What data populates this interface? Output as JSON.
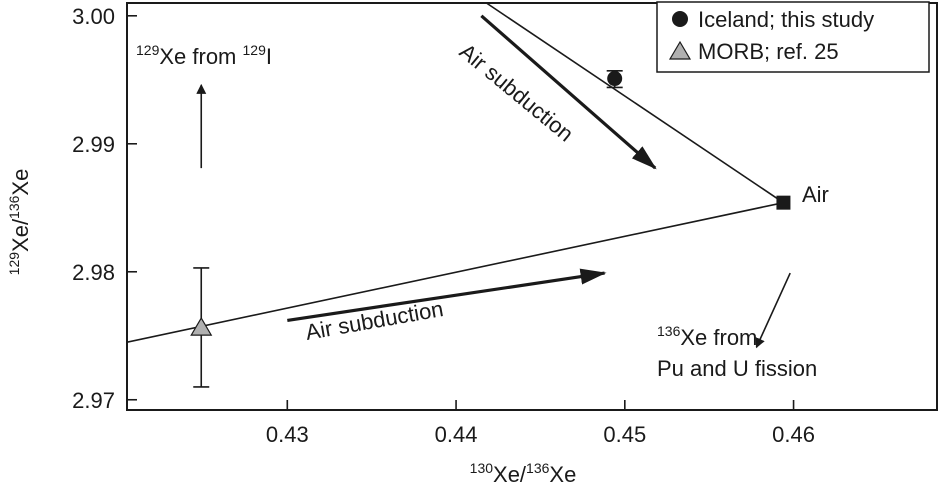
{
  "chart_data": {
    "type": "scatter",
    "xlim": [
      0.4205,
      0.4685
    ],
    "ylim": [
      2.9692,
      3.001
    ],
    "x_ticks": [
      0.43,
      0.44,
      0.45,
      0.46
    ],
    "x_tick_labels": [
      "0.43",
      "0.44",
      "0.45",
      "0.46"
    ],
    "y_ticks": [
      2.97,
      2.98,
      2.99,
      3.0
    ],
    "y_tick_labels": [
      "2.97",
      "2.98",
      "2.99",
      "3.00"
    ],
    "xlabel": {
      "sup1": "130",
      "base1": "Xe/",
      "sup2": "136",
      "base2": "Xe"
    },
    "ylabel": {
      "sup1": "129",
      "base1": "Xe/",
      "sup2": "136",
      "base2": "Xe"
    },
    "legend": {
      "placement": "top-right",
      "entries": [
        {
          "label": "Iceland; this study",
          "marker": "circle",
          "color": "#1a1a1a"
        },
        {
          "label": "MORB; ref. 25",
          "marker": "triangle",
          "color": "#b0b0b0"
        }
      ]
    },
    "series": [
      {
        "name": "Iceland; this study",
        "marker": "circle",
        "points": [
          {
            "x": 0.4494,
            "y": 2.9951,
            "yerr": [
              2.9944,
              2.9957
            ]
          }
        ]
      },
      {
        "name": "MORB; ref. 25",
        "marker": "triangle",
        "points": [
          {
            "x": 0.4249,
            "y": 2.9756,
            "yerr": [
              2.971,
              2.9803
            ]
          }
        ]
      },
      {
        "name": "Air",
        "marker": "square",
        "points": [
          {
            "x": 0.4594,
            "y": 2.9854
          }
        ]
      }
    ],
    "lines": [
      {
        "name": "Iceland-Air mixing line",
        "from": {
          "x": 0.4418,
          "y": 3.001
        },
        "to": {
          "x": 0.4594,
          "y": 2.9854
        }
      },
      {
        "name": "MORB-Air mixing line",
        "from": {
          "x": 0.4205,
          "y": 2.9745
        },
        "to": {
          "x": 0.4594,
          "y": 2.9854
        }
      }
    ],
    "arrows": [
      {
        "from": {
          "x": 0.4415,
          "y": 3.0
        },
        "to": {
          "x": 0.4518,
          "y": 2.9881
        }
      },
      {
        "from": {
          "x": 0.43,
          "y": 2.9762
        },
        "to": {
          "x": 0.4488,
          "y": 2.9799
        }
      },
      {
        "from": {
          "x": 0.4249,
          "y": 2.9881
        },
        "to": {
          "x": 0.4249,
          "y": 2.9946
        }
      },
      {
        "from": {
          "x": 0.4598,
          "y": 2.9799
        },
        "to": {
          "x": 0.4578,
          "y": 2.9741
        }
      }
    ],
    "annotations": {
      "air_subduction_upper": "Air subduction",
      "air_subduction_lower": "Air subduction",
      "air_label": "Air",
      "i129": {
        "sup1": "129",
        "base1": "Xe from ",
        "sup2": "129",
        "base2": "I"
      },
      "fission": {
        "sup": "136",
        "line1": "Xe from",
        "line2": "Pu and U fission"
      }
    }
  }
}
